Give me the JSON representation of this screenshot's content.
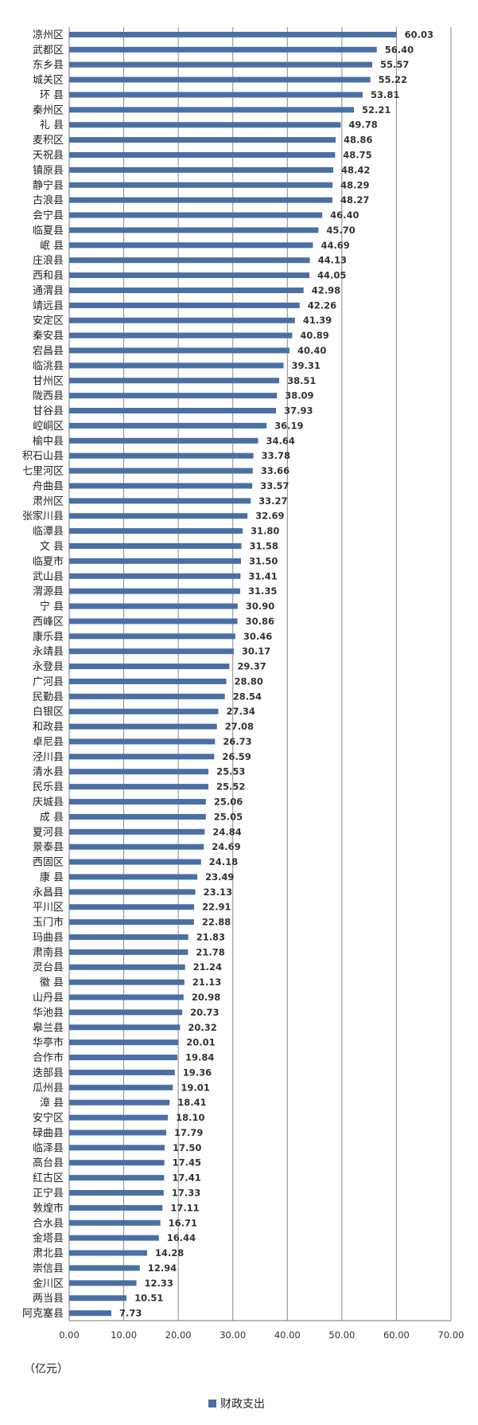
{
  "chart_data": {
    "type": "bar",
    "orientation": "horizontal",
    "categories": [
      "凉州区",
      "武都区",
      "东乡县",
      "城关区",
      "环 县",
      "秦州区",
      "礼 县",
      "麦积区",
      "天祝县",
      "镇原县",
      "静宁县",
      "古浪县",
      "会宁县",
      "临夏县",
      "岷 县",
      "庄浪县",
      "西和县",
      "通渭县",
      "靖远县",
      "安定区",
      "秦安县",
      "宕昌县",
      "临洮县",
      "甘州区",
      "陇西县",
      "甘谷县",
      "崆峒区",
      "榆中县",
      "积石山县",
      "七里河区",
      "舟曲县",
      "肃州区",
      "张家川县",
      "临潭县",
      "文 县",
      "临夏市",
      "武山县",
      "渭源县",
      "宁 县",
      "西峰区",
      "康乐县",
      "永靖县",
      "永登县",
      "广河县",
      "民勤县",
      "白银区",
      "和政县",
      "卓尼县",
      "泾川县",
      "清水县",
      "民乐县",
      "庆城县",
      "成 县",
      "夏河县",
      "景泰县",
      "西固区",
      "康 县",
      "永昌县",
      "平川区",
      "玉门市",
      "玛曲县",
      "肃南县",
      "灵台县",
      "徽 县",
      "山丹县",
      "华池县",
      "皋兰县",
      "华亭市",
      "合作市",
      "迭部县",
      "瓜州县",
      "漳 县",
      "安宁区",
      "碌曲县",
      "临泽县",
      "高台县",
      "红古区",
      "正宁县",
      "敦煌市",
      "合水县",
      "金塔县",
      "肃北县",
      "崇信县",
      "金川区",
      "两当县",
      "阿克塞县"
    ],
    "values": [
      60.03,
      56.4,
      55.57,
      55.22,
      53.81,
      52.21,
      49.78,
      48.86,
      48.75,
      48.42,
      48.29,
      48.27,
      46.4,
      45.7,
      44.69,
      44.13,
      44.05,
      42.98,
      42.26,
      41.39,
      40.89,
      40.4,
      39.31,
      38.51,
      38.09,
      37.93,
      36.19,
      34.64,
      33.78,
      33.66,
      33.57,
      33.27,
      32.69,
      31.8,
      31.58,
      31.5,
      31.41,
      31.35,
      30.9,
      30.86,
      30.46,
      30.17,
      29.37,
      28.8,
      28.54,
      27.34,
      27.08,
      26.73,
      26.59,
      25.53,
      25.52,
      25.06,
      25.05,
      24.84,
      24.69,
      24.18,
      23.49,
      23.13,
      22.91,
      22.88,
      21.83,
      21.78,
      21.24,
      21.13,
      20.98,
      20.73,
      20.32,
      20.01,
      19.84,
      19.36,
      19.01,
      18.41,
      18.1,
      17.79,
      17.5,
      17.45,
      17.41,
      17.33,
      17.11,
      16.71,
      16.44,
      14.28,
      12.94,
      12.33,
      10.51,
      7.73
    ],
    "value_labels": [
      "60.03",
      "56.40",
      "55.57",
      "55.22",
      "53.81",
      "52.21",
      "49.78",
      "48.86",
      "48.75",
      "48.42",
      "48.29",
      "48.27",
      "46.40",
      "45.70",
      "44.69",
      "44.13",
      "44.05",
      "42.98",
      "42.26",
      "41.39",
      "40.89",
      "40.40",
      "39.31",
      "38.51",
      "38.09",
      "37.93",
      "36.19",
      "34.64",
      "33.78",
      "33.66",
      "33.57",
      "33.27",
      "32.69",
      "31.80",
      "31.58",
      "31.50",
      "31.41",
      "31.35",
      "30.90",
      "30.86",
      "30.46",
      "30.17",
      "29.37",
      "28.80",
      "28.54",
      "27.34",
      "27.08",
      "26.73",
      "26.59",
      "25.53",
      "25.52",
      "25.06",
      "25.05",
      "24.84",
      "24.69",
      "24.18",
      "23.49",
      "23.13",
      "22.91",
      "22.88",
      "21.83",
      "21.78",
      "21.24",
      "21.13",
      "20.98",
      "20.73",
      "20.32",
      "20.01",
      "19.84",
      "19.36",
      "19.01",
      "18.41",
      "18.10",
      "17.79",
      "17.50",
      "17.45",
      "17.41",
      "17.33",
      "17.11",
      "16.71",
      "16.44",
      "14.28",
      "12.94",
      "12.33",
      "10.51",
      "7.73"
    ],
    "x_ticks": [
      "0.00",
      "10.00",
      "20.00",
      "30.00",
      "40.00",
      "50.00",
      "60.00",
      "70.00"
    ],
    "xlim": [
      0,
      70
    ],
    "unit_label": "（亿元）",
    "series": [
      {
        "name": "财政支出",
        "color": "#4a6fa5"
      }
    ],
    "legend_position": "bottom",
    "grid": "vertical"
  }
}
